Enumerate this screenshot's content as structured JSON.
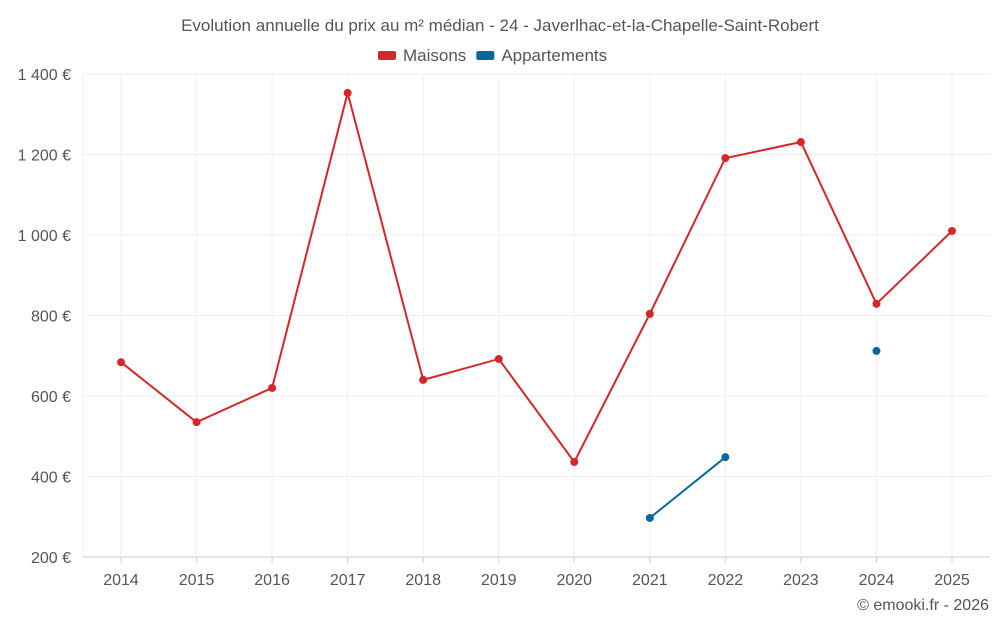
{
  "chart_data": {
    "type": "line",
    "title": "Evolution annuelle du prix au m² médian - 24 - Javerlhac-et-la-Chapelle-Saint-Robert",
    "categories": [
      "2014",
      "2015",
      "2016",
      "2017",
      "2018",
      "2019",
      "2020",
      "2021",
      "2022",
      "2023",
      "2024",
      "2025"
    ],
    "series": [
      {
        "name": "Maisons",
        "color": "#d62728",
        "values": [
          684,
          535,
          620,
          1353,
          640,
          692,
          436,
          804,
          1191,
          1231,
          829,
          1010
        ]
      },
      {
        "name": "Appartements",
        "color": "#08679c",
        "values": [
          null,
          null,
          null,
          null,
          null,
          null,
          null,
          297,
          448,
          null,
          712,
          null
        ]
      }
    ],
    "ylim": [
      200,
      1400
    ],
    "yticks": [
      200,
      400,
      600,
      800,
      1000,
      1200,
      1400
    ],
    "ytick_labels": [
      "200 €",
      "400 €",
      "600 €",
      "800 €",
      "1 000 €",
      "1 200 €",
      "1 400 €"
    ],
    "legend": "top-center",
    "grid": true
  },
  "credit": "© emooki.fr - 2026"
}
